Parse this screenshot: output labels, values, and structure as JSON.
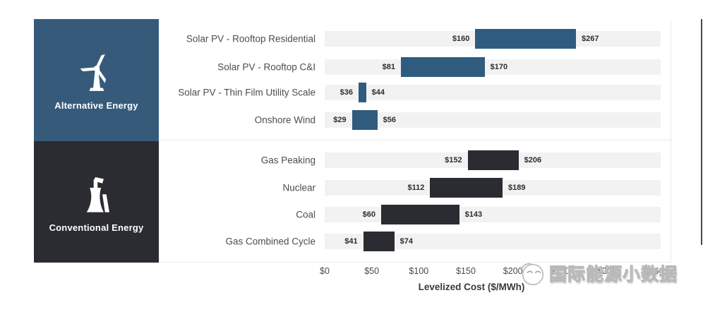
{
  "chart_data": {
    "type": "bar",
    "variant": "horizontal-range-bars",
    "title": "",
    "xlabel": "Levelized Cost ($/MWh)",
    "xlim": [
      0,
      357
    ],
    "grid": false,
    "x_ticks": [
      "$0",
      "$50",
      "$100",
      "$150",
      "$200",
      "$250",
      "$300",
      "$350"
    ],
    "tick_values": [
      0,
      50,
      100,
      150,
      200,
      250,
      300,
      350
    ],
    "track_color": "#f2f2f3",
    "groups": [
      {
        "name": "Alternative Energy",
        "panel_color": "#365a7a",
        "bar_color": "#2f5c7e",
        "icon": "wind-turbine-icon",
        "rows": [
          {
            "label": "Solar PV - Rooftop Residential",
            "min": 160,
            "max": 267,
            "min_label": "$160",
            "max_label": "$267"
          },
          {
            "label": "Solar PV - Rooftop C&I",
            "min": 81,
            "max": 170,
            "min_label": "$81",
            "max_label": "$170"
          },
          {
            "label": "Solar PV - Thin Film Utility Scale",
            "min": 36,
            "max": 44,
            "min_label": "$36",
            "max_label": "$44"
          },
          {
            "label": "Onshore Wind",
            "min": 29,
            "max": 56,
            "min_label": "$29",
            "max_label": "$56"
          }
        ]
      },
      {
        "name": "Conventional Energy",
        "panel_color": "#2b2c32",
        "bar_color": "#2b2c32",
        "icon": "power-plant-icon",
        "rows": [
          {
            "label": "Gas Peaking",
            "min": 152,
            "max": 206,
            "min_label": "$152",
            "max_label": "$206"
          },
          {
            "label": "Nuclear",
            "min": 112,
            "max": 189,
            "min_label": "$112",
            "max_label": "$189"
          },
          {
            "label": "Coal",
            "min": 60,
            "max": 143,
            "min_label": "$60",
            "max_label": "$143"
          },
          {
            "label": "Gas Combined Cycle",
            "min": 41,
            "max": 74,
            "min_label": "$41",
            "max_label": "$74"
          }
        ]
      }
    ],
    "row_centers": [
      [
        55,
        95,
        131,
        170
      ],
      [
        227,
        266,
        304,
        342
      ]
    ]
  },
  "watermark": {
    "text": "国际能源小数据"
  }
}
